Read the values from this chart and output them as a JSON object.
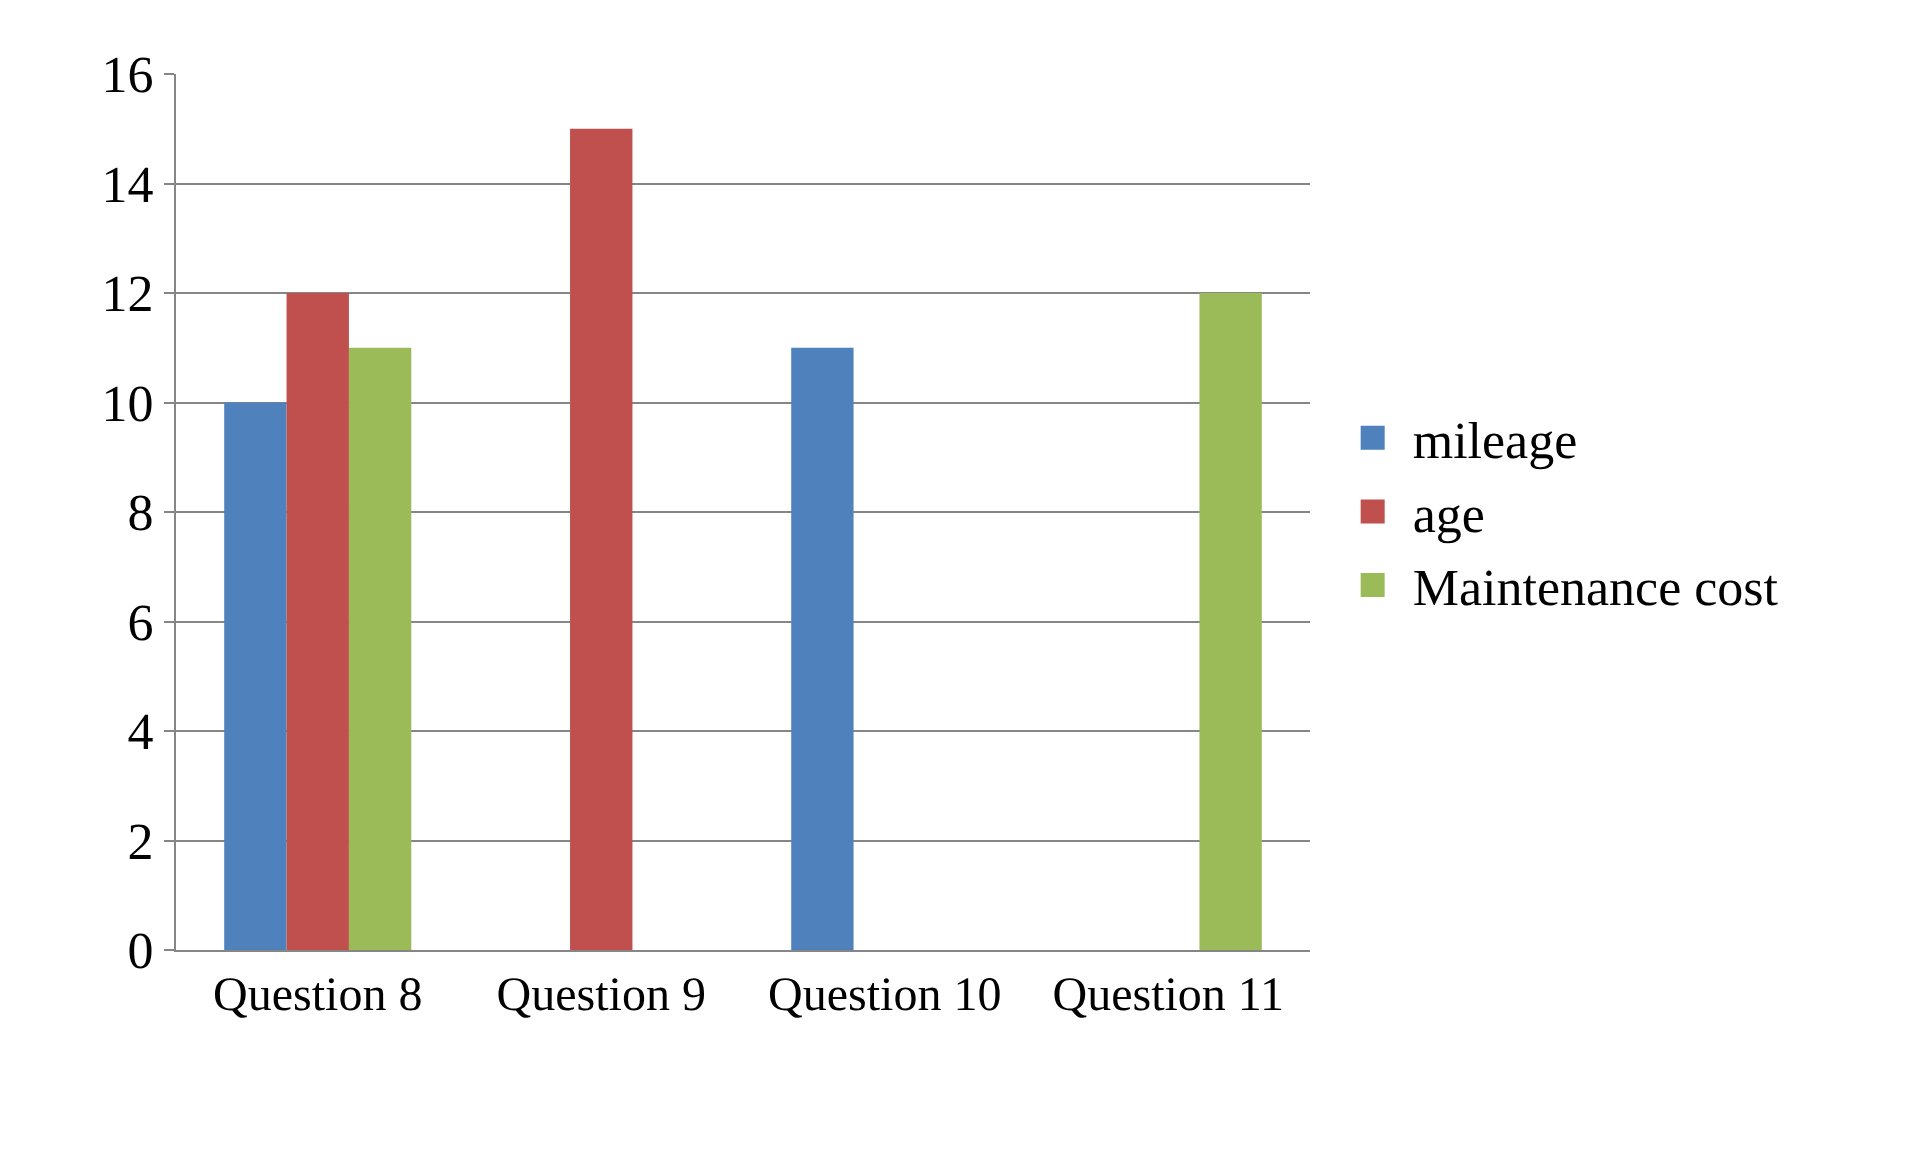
{
  "chart_data": {
    "type": "bar",
    "categories": [
      "Question 8",
      "Question 9",
      "Question 10",
      "Question 11"
    ],
    "series": [
      {
        "name": "mileage",
        "color": "#4f81bd",
        "values": [
          10,
          null,
          11,
          null
        ]
      },
      {
        "name": "age",
        "color": "#c0504d",
        "values": [
          12,
          15,
          null,
          null
        ]
      },
      {
        "name": "Maintenance cost",
        "color": "#9bbb59",
        "values": [
          11,
          null,
          null,
          12
        ]
      }
    ],
    "ylim": [
      0,
      16
    ],
    "yticks": [
      0,
      2,
      4,
      6,
      8,
      10,
      12,
      14,
      16
    ],
    "grid": "y",
    "legend": "right"
  }
}
